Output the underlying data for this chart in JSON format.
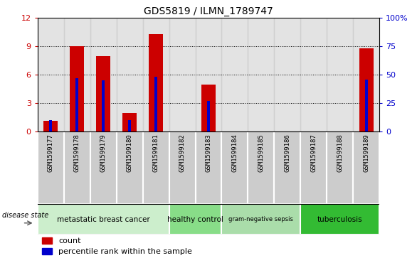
{
  "title": "GDS5819 / ILMN_1789747",
  "samples": [
    "GSM1599177",
    "GSM1599178",
    "GSM1599179",
    "GSM1599180",
    "GSM1599181",
    "GSM1599182",
    "GSM1599183",
    "GSM1599184",
    "GSM1599185",
    "GSM1599186",
    "GSM1599187",
    "GSM1599188",
    "GSM1599189"
  ],
  "count_values": [
    1.1,
    9.0,
    8.0,
    2.0,
    10.3,
    0.0,
    5.0,
    0.0,
    0.0,
    0.0,
    0.0,
    0.0,
    8.8
  ],
  "percentile_values": [
    10.0,
    47.0,
    45.0,
    10.0,
    48.0,
    0.0,
    27.0,
    0.0,
    0.0,
    0.0,
    0.0,
    0.0,
    46.0
  ],
  "ylim_left": [
    0,
    12
  ],
  "ylim_right": [
    0,
    100
  ],
  "yticks_left": [
    0,
    3,
    6,
    9,
    12
  ],
  "yticks_right": [
    0,
    25,
    50,
    75,
    100
  ],
  "ytick_labels_right": [
    "0",
    "25",
    "50",
    "75",
    "100%"
  ],
  "bar_color": "#cc0000",
  "percentile_color": "#0000cc",
  "bar_width": 0.55,
  "percentile_bar_width": 0.12,
  "grid_linestyle": "dotted",
  "group_configs": [
    {
      "label": "metastatic breast cancer",
      "start": 0,
      "end": 5,
      "color": "#cceecc"
    },
    {
      "label": "healthy control",
      "start": 5,
      "end": 7,
      "color": "#88dd88"
    },
    {
      "label": "gram-negative sepsis",
      "start": 7,
      "end": 10,
      "color": "#aaddaa"
    },
    {
      "label": "tuberculosis",
      "start": 10,
      "end": 13,
      "color": "#33bb33"
    }
  ],
  "disease_state_label": "disease state",
  "legend_count_label": "count",
  "legend_percentile_label": "percentile rank within the sample",
  "tick_color_left": "#cc0000",
  "tick_color_right": "#0000cc",
  "col_bg_color": "#cccccc",
  "col_border_color": "#ffffff"
}
